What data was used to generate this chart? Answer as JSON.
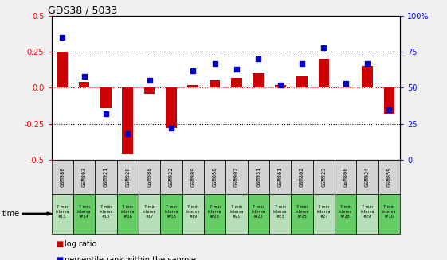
{
  "title": "GDS38 / 5033",
  "samples": [
    "GSM980",
    "GSM863",
    "GSM921",
    "GSM920",
    "GSM988",
    "GSM922",
    "GSM989",
    "GSM858",
    "GSM902",
    "GSM931",
    "GSM861",
    "GSM862",
    "GSM923",
    "GSM860",
    "GSM924",
    "GSM859"
  ],
  "time_labels": [
    "7 min\ninterva\n#13",
    "7 min\ninterva\nl#14",
    "7 min\ninterva\n#15",
    "7 min\ninterva\nl#16",
    "7 min\ninterva\n#17",
    "7 min\ninterva\nl#18",
    "7 min\ninterva\n#19",
    "7 min\ninterva\nl#20",
    "7 min\ninterva\n#21",
    "7 min\ninterva\nl#22",
    "7 min\ninterva\n#23",
    "7 min\ninterva\nl#25",
    "7 min\ninterva\n#27",
    "7 min\ninterva\nl#28",
    "7 min\ninterva\n#29",
    "7 min\ninterva\nl#30"
  ],
  "log_ratio": [
    0.25,
    0.04,
    -0.14,
    -0.46,
    -0.04,
    -0.28,
    0.02,
    0.05,
    0.07,
    0.1,
    0.02,
    0.08,
    0.2,
    0.01,
    0.15,
    -0.18
  ],
  "percentile": [
    85,
    58,
    32,
    18,
    55,
    22,
    62,
    67,
    63,
    70,
    52,
    67,
    78,
    53,
    67,
    35
  ],
  "bar_color": "#cc0000",
  "dot_color": "#0000cc",
  "fig_bg": "#f0f0f0",
  "plot_bg": "#ffffff",
  "ylim_left": [
    -0.5,
    0.5
  ],
  "ylim_right": [
    0,
    100
  ],
  "yticks_left": [
    -0.5,
    -0.25,
    0.0,
    0.25,
    0.5
  ],
  "yticks_right": [
    0,
    25,
    50,
    75,
    100
  ],
  "legend_log_ratio": "log ratio",
  "legend_percentile": "percentile rank within the sample",
  "time_text": "time",
  "cell_gray": "#d3d3d3",
  "green_light": "#b8e0b8",
  "green_dark": "#66cc66",
  "bar_width": 0.5
}
